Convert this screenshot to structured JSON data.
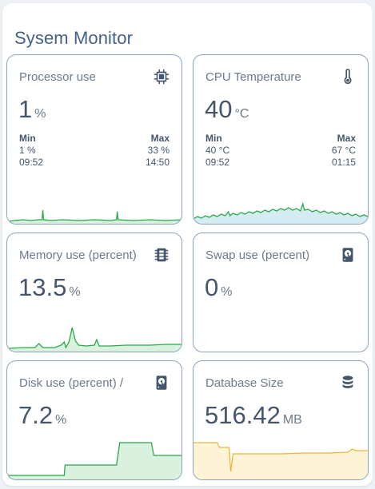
{
  "title": "Sysem Monitor",
  "colors": {
    "green": "#2aa84a",
    "green_fill": "#d9f1de",
    "blue_fill": "#d6ecf3",
    "yellow": "#e9b73a",
    "yellow_fill": "#fdf3d6"
  },
  "cards": {
    "processor": {
      "name": "Processor use",
      "icon": "chip-icon",
      "value": "1",
      "unit": "%",
      "min_label": "Min",
      "max_label": "Max",
      "min_value": "1 %",
      "min_time": "09:52",
      "max_value": "33 %",
      "max_time": "14:50"
    },
    "cpu_temp": {
      "name": "CPU Temperature",
      "icon": "thermometer-icon",
      "value": "40",
      "unit": "°C",
      "min_label": "Min",
      "max_label": "Max",
      "min_value": "40 °C",
      "min_time": "09:52",
      "max_value": "67 °C",
      "max_time": "01:15"
    },
    "memory": {
      "name": "Memory use (percent)",
      "icon": "memory-icon",
      "value": "13.5",
      "unit": "%"
    },
    "swap": {
      "name": "Swap use (percent)",
      "icon": "harddisk-icon",
      "value": "0",
      "unit": "%"
    },
    "disk": {
      "name": "Disk use (percent) /",
      "icon": "harddisk-icon",
      "value": "7.2",
      "unit": "%"
    },
    "database": {
      "name": "Database Size",
      "icon": "database-icon",
      "value": "516.42",
      "unit": "MB"
    }
  }
}
